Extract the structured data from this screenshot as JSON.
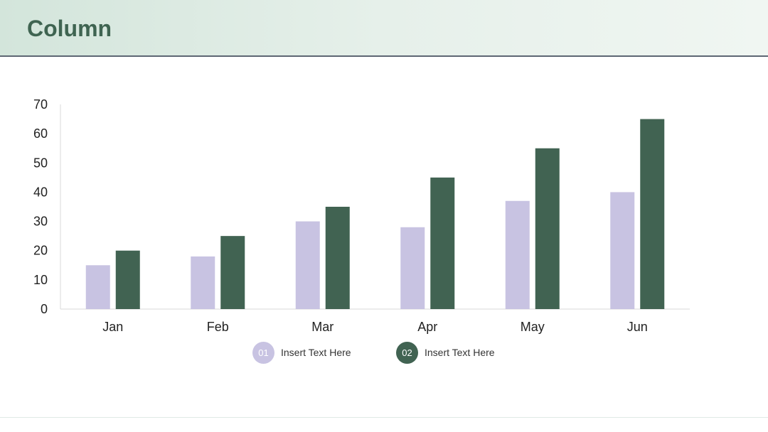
{
  "header": {
    "title": "Column"
  },
  "colors": {
    "series_1": "#c8c3e2",
    "series_2": "#416352",
    "axis": "#d9d9d9",
    "header_rule": "#5d6673"
  },
  "legend": [
    {
      "number": "01",
      "label": "Insert Text Here"
    },
    {
      "number": "02",
      "label": "Insert Text Here"
    }
  ],
  "chart_data": {
    "type": "bar",
    "title": "",
    "xlabel": "",
    "ylabel": "",
    "categories": [
      "Jan",
      "Feb",
      "Mar",
      "Apr",
      "May",
      "Jun"
    ],
    "series": [
      {
        "values": [
          15,
          18,
          30,
          28,
          37,
          40
        ]
      },
      {
        "values": [
          20,
          25,
          35,
          45,
          55,
          65
        ]
      }
    ],
    "ylim": [
      0,
      70
    ],
    "yticks": [
      0,
      10,
      20,
      30,
      40,
      50,
      60,
      70
    ],
    "grid": false,
    "legend_placement": "bottom"
  }
}
